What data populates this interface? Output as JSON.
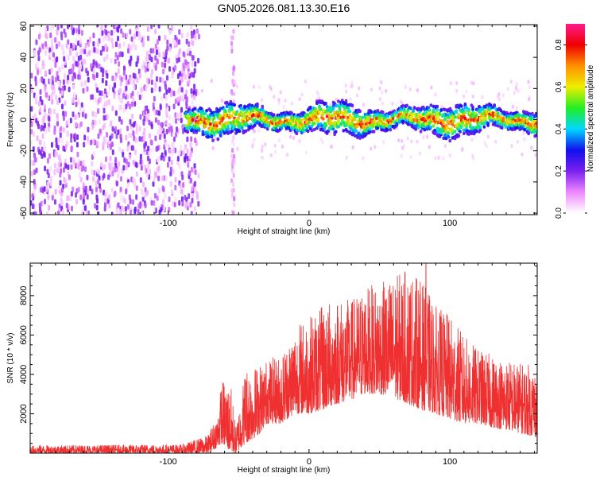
{
  "title": "GN05.2026.081.13.30.E16",
  "colors": {
    "snr_line": "#f03030",
    "axis": "#000000",
    "background": "#ffffff",
    "colormap": [
      "#ffffff",
      "#ee88ff",
      "#7a20ee",
      "#1010ee",
      "#00d8ff",
      "#22ee22",
      "#eeee00",
      "#ff9000",
      "#ee0000",
      "#ff1a8c"
    ]
  },
  "chart_data": [
    {
      "type": "heatmap",
      "xlabel": "Height of straight line (km)",
      "ylabel": "Frequency (Hz)",
      "xlim": [
        -198,
        162
      ],
      "ylim": [
        -61,
        61
      ],
      "xticks": [
        -100,
        0,
        100
      ],
      "xtick_labels": [
        "-100",
        "0",
        "100"
      ],
      "yticks": [
        -60,
        -40,
        -20,
        0,
        20,
        40,
        60
      ],
      "ytick_labels": [
        "-60",
        "-40",
        "-20",
        "0",
        "20",
        "40",
        "60"
      ],
      "colorbar": {
        "label": "Normalized spectral amplitude",
        "range": [
          0,
          0.9
        ],
        "ticks": [
          0,
          0.2,
          0.4,
          0.6,
          0.8
        ],
        "tick_labels": [
          "0.0",
          "0.2",
          "0.4",
          "0.6",
          "0.8"
        ]
      },
      "regions": [
        {
          "x_range": [
            -198,
            -78
          ],
          "y_range": [
            -61,
            61
          ],
          "description": "scattered noise",
          "amplitude": [
            0.05,
            0.22
          ]
        },
        {
          "x_range": [
            -88,
            162
          ],
          "center_frequency": 0,
          "half_width": 8,
          "amplitude": [
            0.2,
            0.9
          ]
        },
        {
          "x_range": [
            -55,
            -53
          ],
          "y_range": [
            -61,
            61
          ],
          "amplitude": [
            0.05,
            0.15
          ]
        }
      ]
    },
    {
      "type": "line",
      "xlabel": "Height of straight line (km)",
      "ylabel": "SNR (10 * v/v)",
      "xlim": [
        -198,
        162
      ],
      "ylim": [
        0,
        9650
      ],
      "xticks": [
        -100,
        0,
        100
      ],
      "xtick_labels": [
        "-100",
        "0",
        "100"
      ],
      "yticks": [
        2000,
        4000,
        6000,
        8000
      ],
      "ytick_labels": [
        "2000",
        "4000",
        "6000",
        "8000"
      ],
      "series": [
        {
          "envelope_x": [
            -198,
            -90,
            -72,
            -65,
            -62,
            -55,
            -52,
            -45,
            -40,
            -35,
            -30,
            -20,
            -10,
            0,
            10,
            20,
            30,
            40,
            50,
            60,
            70,
            80,
            90,
            100,
            110,
            120,
            130,
            140,
            150,
            162
          ],
          "envelope_low": [
            0,
            0,
            0,
            300,
            500,
            0,
            0,
            500,
            700,
            1000,
            1500,
            1500,
            2000,
            2000,
            2200,
            2500,
            2700,
            3000,
            3000,
            2800,
            2500,
            2200,
            2000,
            1700,
            1500,
            1500,
            1300,
            1200,
            1000,
            800
          ],
          "envelope_high": [
            400,
            450,
            900,
            2000,
            3800,
            3300,
            1300,
            4500,
            4400,
            4600,
            4800,
            5000,
            6500,
            7000,
            7500,
            8000,
            7800,
            8500,
            8600,
            9000,
            9400,
            8800,
            7500,
            7000,
            6000,
            5300,
            5000,
            4800,
            4600,
            4500
          ],
          "peak": {
            "x": 83,
            "y": 9600
          }
        }
      ]
    }
  ]
}
